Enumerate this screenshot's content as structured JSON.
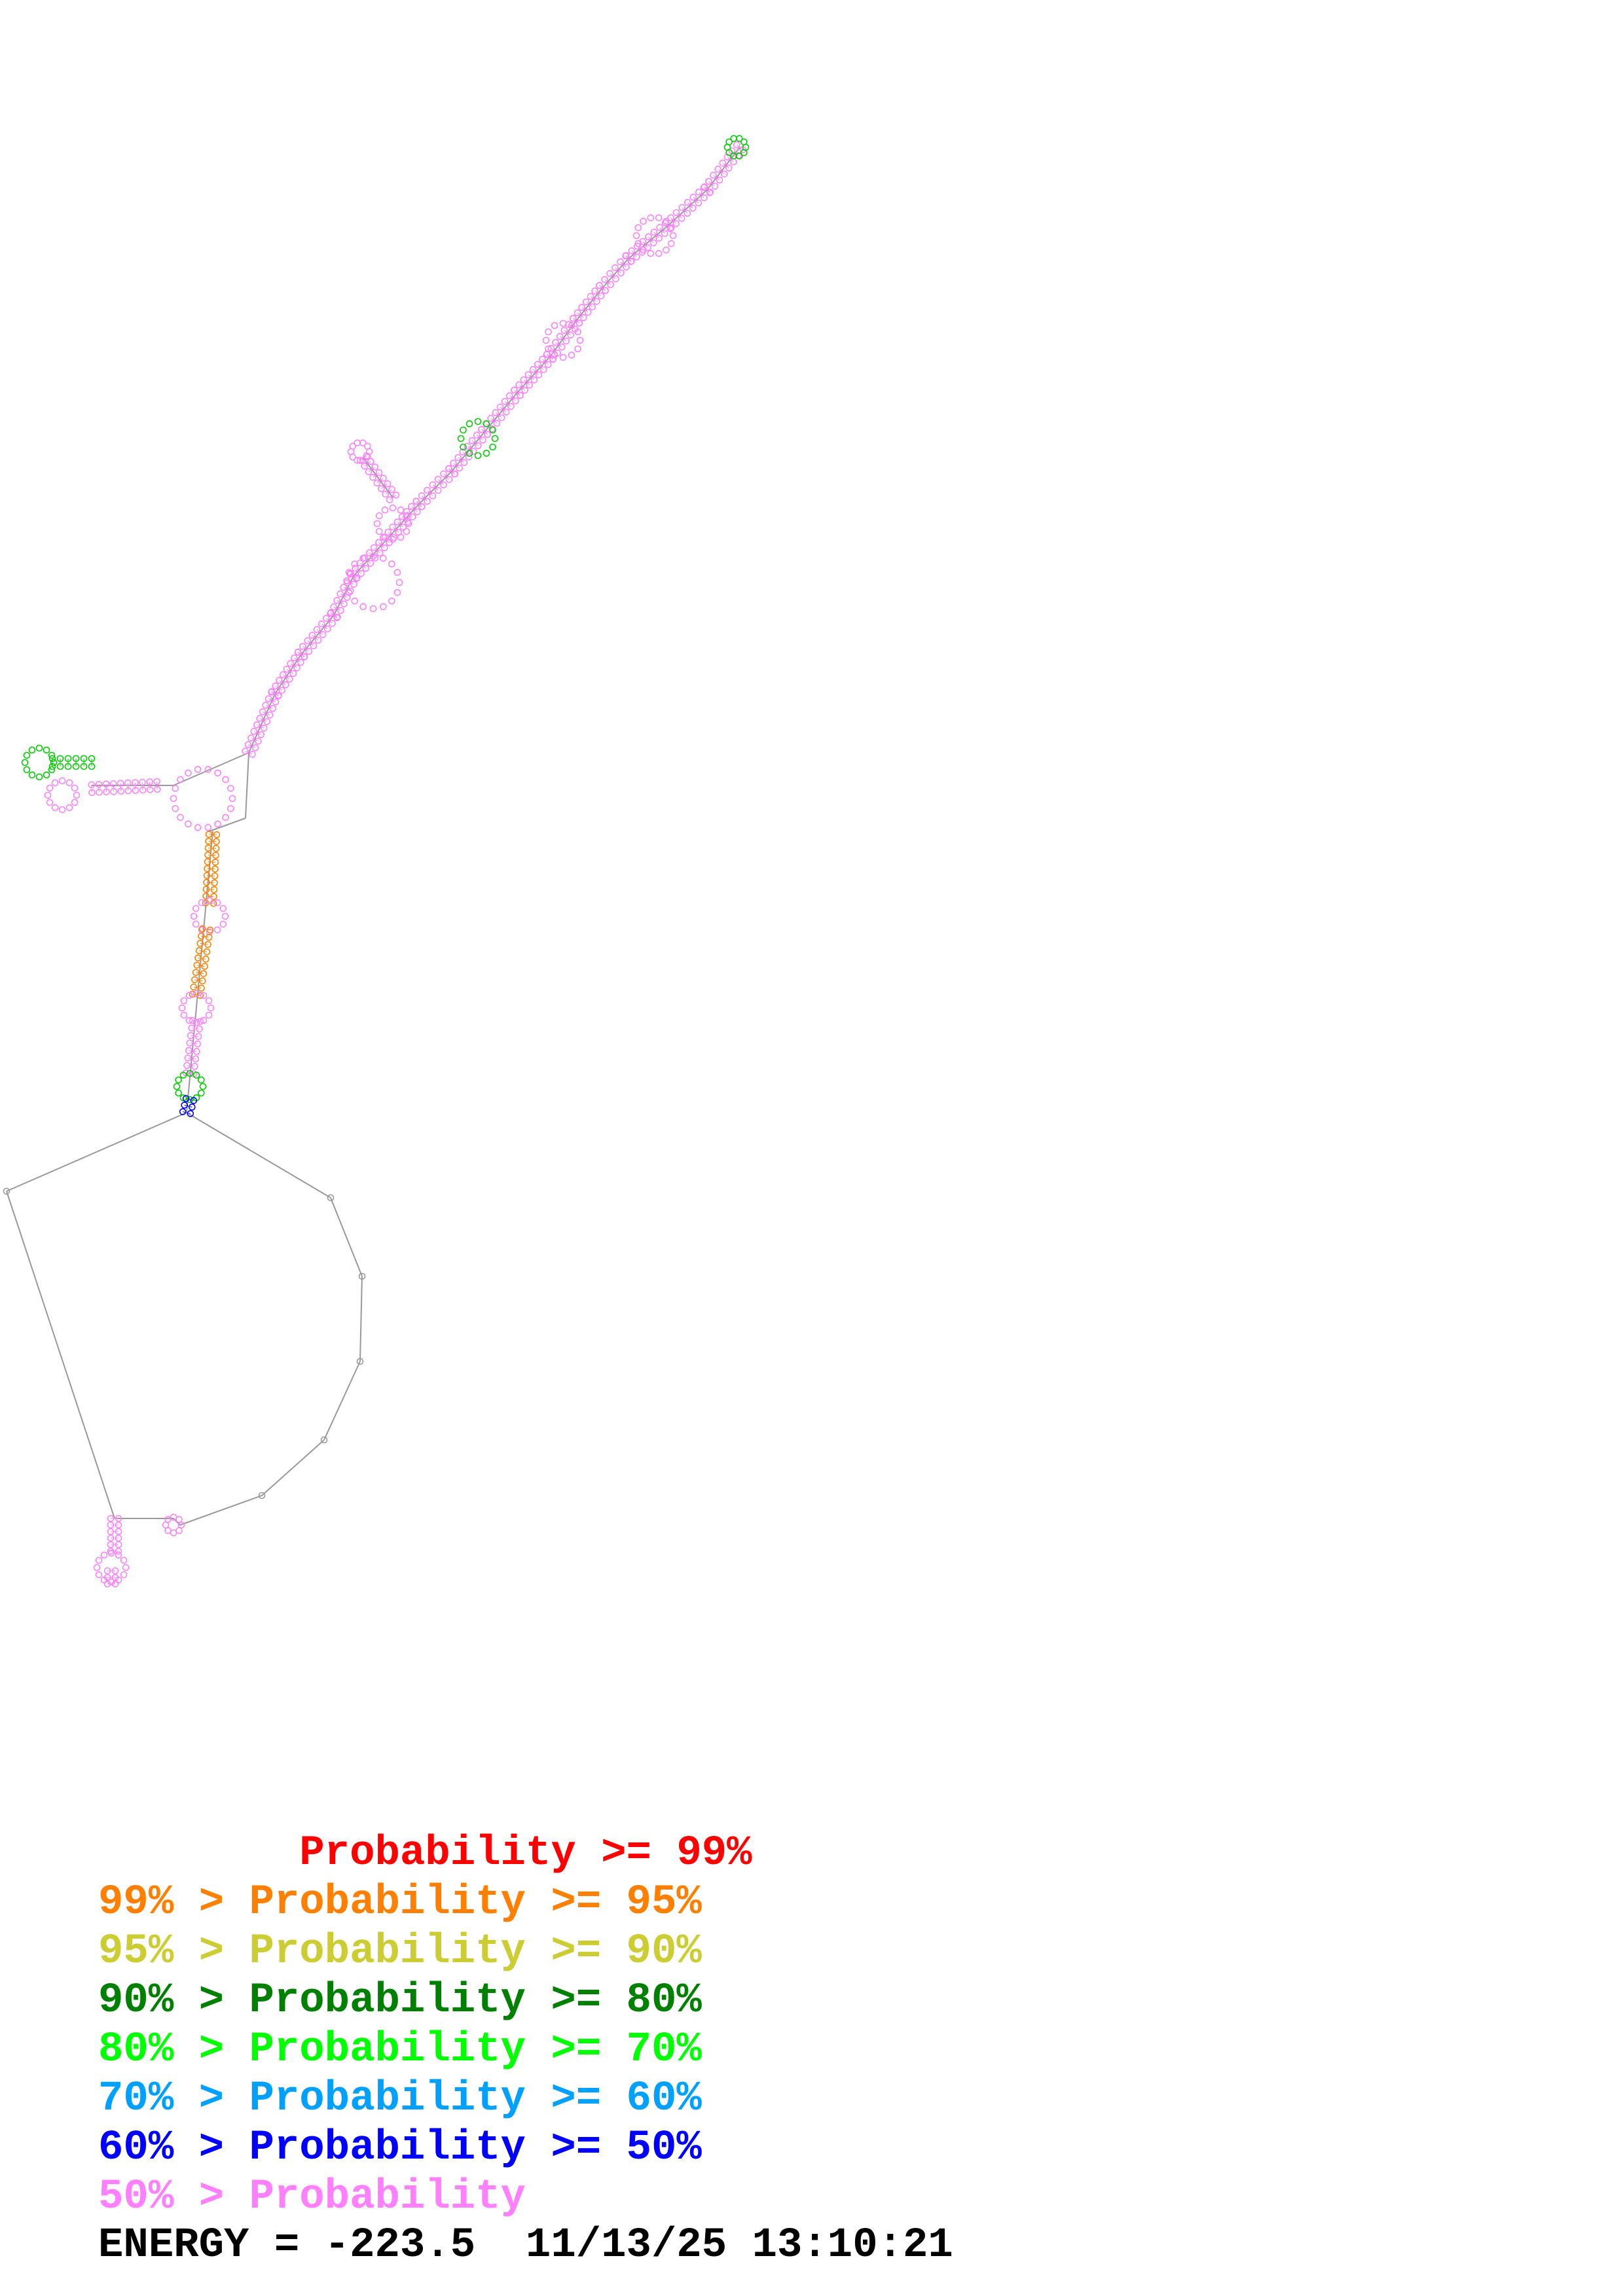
{
  "legend": {
    "items": [
      {
        "text": "        Probability >= 99%",
        "color": "#ff0000"
      },
      {
        "text": "99% > Probability >= 95%",
        "color": "#ff8000"
      },
      {
        "text": "95% > Probability >= 90%",
        "color": "#cccc33"
      },
      {
        "text": "90% > Probability >= 80%",
        "color": "#008000"
      },
      {
        "text": "80% > Probability >= 70%",
        "color": "#00ff00"
      },
      {
        "text": "70% > Probability >= 60%",
        "color": "#00a0ff"
      },
      {
        "text": "60% > Probability >= 50%",
        "color": "#0000ff"
      },
      {
        "text": "50% > Probability",
        "color": "#ff80ff"
      }
    ]
  },
  "footer": {
    "energy_label": "ENERGY = ",
    "energy_value": "-223.5",
    "timestamp": "11/13/25 13:10:21"
  },
  "colors": {
    "backbone": "#999999",
    "pair_default": "#ff80ff",
    "pair_orange": "#ff8000",
    "pair_green": "#00cc00",
    "pair_blue": "#0000ff"
  }
}
